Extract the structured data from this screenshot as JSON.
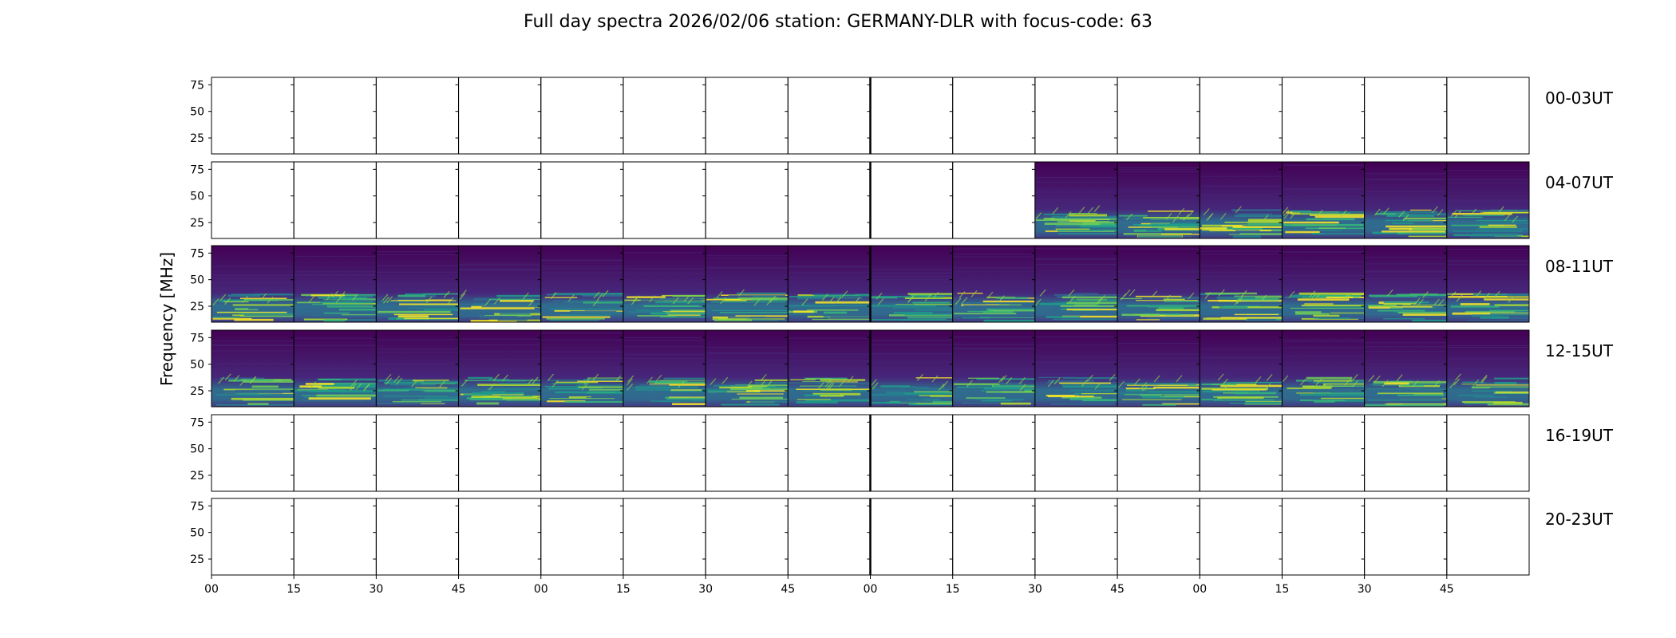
{
  "chart_data": {
    "type": "heatmap",
    "title": "Full day spectra 2026/02/06 station: GERMANY-DLR with focus-code: 63",
    "ylabel": "Frequency [MHz]",
    "ylim": [
      10,
      82
    ],
    "yticks": [
      75,
      50,
      25
    ],
    "ytick_labels": [
      "75",
      "50",
      "25"
    ],
    "xtick_labels": [
      "00",
      "15",
      "30",
      "45",
      "00",
      "15",
      "30",
      "45",
      "00",
      "15",
      "30",
      "45",
      "00",
      "15",
      "30",
      "45"
    ],
    "rows": [
      {
        "label": "00-03UT",
        "panels_with_data": []
      },
      {
        "label": "04-07UT",
        "panels_with_data": [
          10,
          11,
          12,
          13,
          14,
          15
        ]
      },
      {
        "label": "08-11UT",
        "panels_with_data": [
          0,
          1,
          2,
          3,
          4,
          5,
          6,
          7,
          8,
          9,
          10,
          11,
          12,
          13,
          14,
          15
        ]
      },
      {
        "label": "12-15UT",
        "panels_with_data": [
          0,
          1,
          2,
          3,
          4,
          5,
          6,
          7,
          8,
          9,
          10,
          11,
          12,
          13,
          14,
          15
        ]
      },
      {
        "label": "16-19UT",
        "panels_with_data": []
      },
      {
        "label": "20-23UT",
        "panels_with_data": []
      }
    ],
    "colormap": "viridis",
    "colors": {
      "background": "#440154",
      "mid": "#3b528b",
      "teal": "#21918c",
      "green": "#5ec962",
      "bright": "#fde725"
    },
    "grid": false
  }
}
